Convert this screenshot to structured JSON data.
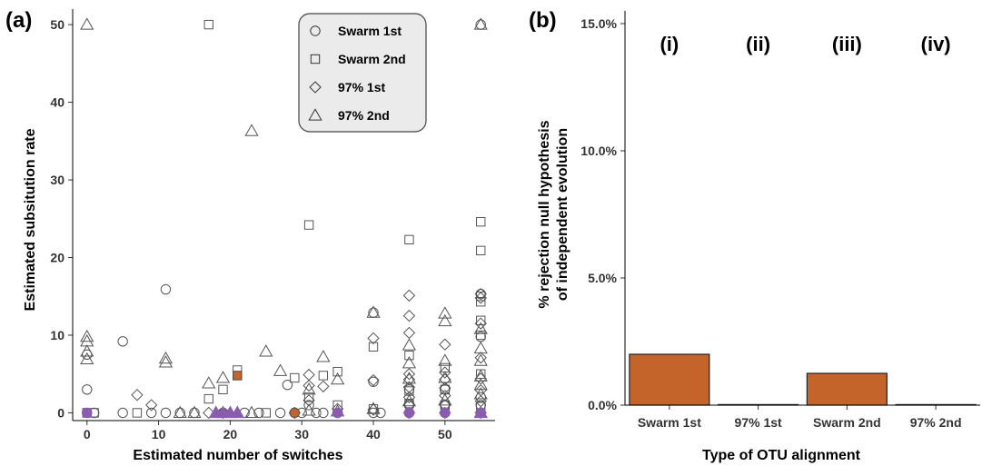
{
  "chart_data": [
    {
      "panel": "(a)",
      "type": "scatter",
      "xlabel": "Estimated number of switches",
      "ylabel": "Estimated subsitution rate",
      "xlim": [
        -2,
        57
      ],
      "ylim": [
        -1,
        52
      ],
      "x_ticks": [
        "0",
        "10",
        "20",
        "30",
        "40",
        "50"
      ],
      "y_ticks": [
        "0",
        "10",
        "20",
        "30",
        "40",
        "50"
      ],
      "grid": false,
      "legend_position": "top-right",
      "colors": {
        "outline": "#555555",
        "orange": "#c4632a",
        "purple": "#8a5cb0"
      },
      "series": [
        {
          "name": "Swarm 1st",
          "marker": "circle",
          "points": [
            [
              0,
              0
            ],
            [
              0,
              3
            ],
            [
              0,
              7.5
            ],
            [
              1,
              0
            ],
            [
              5,
              9.2
            ],
            [
              5,
              0
            ],
            [
              9,
              0
            ],
            [
              11,
              15.9
            ],
            [
              11,
              0
            ],
            [
              13,
              0
            ],
            [
              15,
              0
            ],
            [
              19,
              0
            ],
            [
              22,
              0
            ],
            [
              24,
              0
            ],
            [
              27,
              0
            ],
            [
              28,
              3.6
            ],
            [
              30,
              0
            ],
            [
              31,
              1
            ],
            [
              32,
              0
            ],
            [
              33,
              0
            ],
            [
              35,
              0
            ],
            [
              40,
              0
            ],
            [
              40,
              4
            ],
            [
              40,
              12.9
            ],
            [
              41,
              0
            ],
            [
              45,
              0
            ],
            [
              45,
              1
            ],
            [
              45,
              3
            ],
            [
              50,
              0
            ],
            [
              50,
              1
            ],
            [
              50,
              3
            ],
            [
              55,
              0
            ],
            [
              55,
              1
            ],
            [
              55,
              2
            ],
            [
              55,
              9.8
            ],
            [
              55,
              15.3
            ],
            [
              55,
              50
            ]
          ],
          "highlighted": [
            {
              "x": 29,
              "y": 0,
              "color": "orange"
            },
            {
              "x": 35,
              "y": 0,
              "color": "purple"
            },
            {
              "x": 45,
              "y": 0,
              "color": "purple"
            },
            {
              "x": 50,
              "y": 0,
              "color": "purple"
            },
            {
              "x": 55,
              "y": 0,
              "color": "purple"
            }
          ]
        },
        {
          "name": "Swarm 2nd",
          "marker": "square",
          "points": [
            [
              0,
              0
            ],
            [
              1,
              0
            ],
            [
              7,
              0
            ],
            [
              17,
              50
            ],
            [
              17,
              1.8
            ],
            [
              19,
              3
            ],
            [
              21,
              5.5
            ],
            [
              25,
              0
            ],
            [
              29,
              4.5
            ],
            [
              31,
              24.2
            ],
            [
              31,
              2
            ],
            [
              33,
              4.8
            ],
            [
              35,
              5.3
            ],
            [
              35,
              1
            ],
            [
              40,
              8.5
            ],
            [
              40,
              0.5
            ],
            [
              45,
              22.3
            ],
            [
              45,
              7.4
            ],
            [
              45,
              2.8
            ],
            [
              45,
              1.2
            ],
            [
              50,
              5.8
            ],
            [
              50,
              3
            ],
            [
              50,
              1
            ],
            [
              55,
              24.6
            ],
            [
              55,
              20.9
            ],
            [
              55,
              15
            ],
            [
              55,
              14.3
            ],
            [
              55,
              11.9
            ],
            [
              55,
              10
            ],
            [
              55,
              5
            ],
            [
              55,
              0.8
            ]
          ],
          "highlighted": [
            {
              "x": 21,
              "y": 4.8,
              "color": "orange"
            },
            {
              "x": 0,
              "y": 0,
              "color": "purple"
            }
          ]
        },
        {
          "name": "97% 1st",
          "marker": "diamond",
          "points": [
            [
              7,
              2.3
            ],
            [
              9,
              1
            ],
            [
              17,
              0
            ],
            [
              19,
              0
            ],
            [
              29,
              0
            ],
            [
              31,
              4.9
            ],
            [
              31,
              3.5
            ],
            [
              31,
              1.6
            ],
            [
              33,
              3.4
            ],
            [
              35,
              0.5
            ],
            [
              40,
              9.6
            ],
            [
              40,
              4.2
            ],
            [
              40,
              0.4
            ],
            [
              45,
              15.1
            ],
            [
              45,
              12.5
            ],
            [
              45,
              10.3
            ],
            [
              45,
              5
            ],
            [
              45,
              4.3
            ],
            [
              45,
              3.3
            ],
            [
              45,
              2
            ],
            [
              45,
              1
            ],
            [
              50,
              8.8
            ],
            [
              50,
              5.2
            ],
            [
              50,
              4.3
            ],
            [
              50,
              3.2
            ],
            [
              50,
              2.2
            ],
            [
              50,
              1
            ],
            [
              55,
              15.3
            ],
            [
              55,
              14.8
            ],
            [
              55,
              11.5
            ],
            [
              55,
              7.1
            ],
            [
              55,
              4.4
            ],
            [
              55,
              2.9
            ],
            [
              55,
              1.5
            ]
          ],
          "highlighted": [
            {
              "x": 45,
              "y": 0,
              "color": "purple"
            },
            {
              "x": 50,
              "y": 0,
              "color": "purple"
            },
            {
              "x": 55,
              "y": 0,
              "color": "purple"
            }
          ]
        },
        {
          "name": "97% 2nd",
          "marker": "triangle",
          "points": [
            [
              0,
              50
            ],
            [
              0,
              9.8
            ],
            [
              0,
              9.2
            ],
            [
              0,
              7.9
            ],
            [
              0,
              6.9
            ],
            [
              11,
              7
            ],
            [
              11,
              6.5
            ],
            [
              13,
              0
            ],
            [
              15,
              0
            ],
            [
              17,
              3.8
            ],
            [
              19,
              4.5
            ],
            [
              19,
              0
            ],
            [
              23,
              36.3
            ],
            [
              23,
              0
            ],
            [
              25,
              7.9
            ],
            [
              27,
              5.4
            ],
            [
              31,
              3
            ],
            [
              31,
              0.3
            ],
            [
              33,
              7.2
            ],
            [
              35,
              4.3
            ],
            [
              35,
              0.2
            ],
            [
              40,
              12.9
            ],
            [
              40,
              0.5
            ],
            [
              45,
              8.7
            ],
            [
              45,
              6.4
            ],
            [
              45,
              4.4
            ],
            [
              45,
              1.5
            ],
            [
              50,
              12.8
            ],
            [
              50,
              11.8
            ],
            [
              50,
              6.7
            ],
            [
              50,
              4.5
            ],
            [
              50,
              1.6
            ],
            [
              55,
              50
            ],
            [
              55,
              10.8
            ],
            [
              55,
              8.3
            ],
            [
              55,
              6.7
            ],
            [
              55,
              4.7
            ],
            [
              55,
              3.6
            ],
            [
              55,
              2.4
            ]
          ],
          "highlighted": [
            {
              "x": 18,
              "y": 0,
              "color": "purple"
            },
            {
              "x": 19,
              "y": 0,
              "color": "purple"
            },
            {
              "x": 20,
              "y": 0,
              "color": "purple"
            },
            {
              "x": 21,
              "y": 0,
              "color": "purple"
            },
            {
              "x": 55,
              "y": 0,
              "color": "purple"
            }
          ]
        }
      ]
    },
    {
      "panel": "(b)",
      "type": "bar",
      "xlabel": "Type of OTU alignment",
      "ylabel_lines": [
        "% rejection null hypothesis",
        "of independent evolution"
      ],
      "ylim": [
        0,
        15.5
      ],
      "y_ticks": [
        "0.0%",
        "5.0%",
        "10.0%",
        "15.0%"
      ],
      "y_tick_values": [
        0,
        5,
        10,
        15
      ],
      "categories": [
        "Swarm 1st",
        "97% 1st",
        "Swarm 2nd",
        "97% 2nd"
      ],
      "values": [
        2.0,
        0.0,
        1.25,
        0.0
      ],
      "annotations": [
        "(i)",
        "(ii)",
        "(iii)",
        "(iv)"
      ],
      "bar_color": "#c4632a",
      "grid": false
    }
  ]
}
